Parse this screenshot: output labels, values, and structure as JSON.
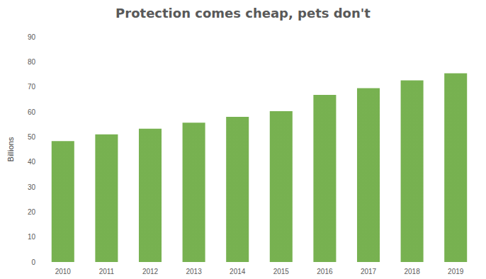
{
  "chart_data": {
    "type": "bar",
    "title": "Protection comes cheap, pets don't",
    "y_label": "Billions",
    "categories": [
      "2010",
      "2011",
      "2012",
      "2013",
      "2014",
      "2015",
      "2016",
      "2017",
      "2018",
      "2019"
    ],
    "values": [
      48.3,
      51.0,
      53.3,
      55.7,
      58.0,
      60.3,
      66.8,
      69.5,
      72.6,
      75.4
    ],
    "color": "#70ad47",
    "ylim": [
      0,
      90
    ],
    "yticks": [
      0,
      10,
      20,
      30,
      40,
      50,
      60,
      70,
      80,
      90
    ],
    "grid": false
  }
}
